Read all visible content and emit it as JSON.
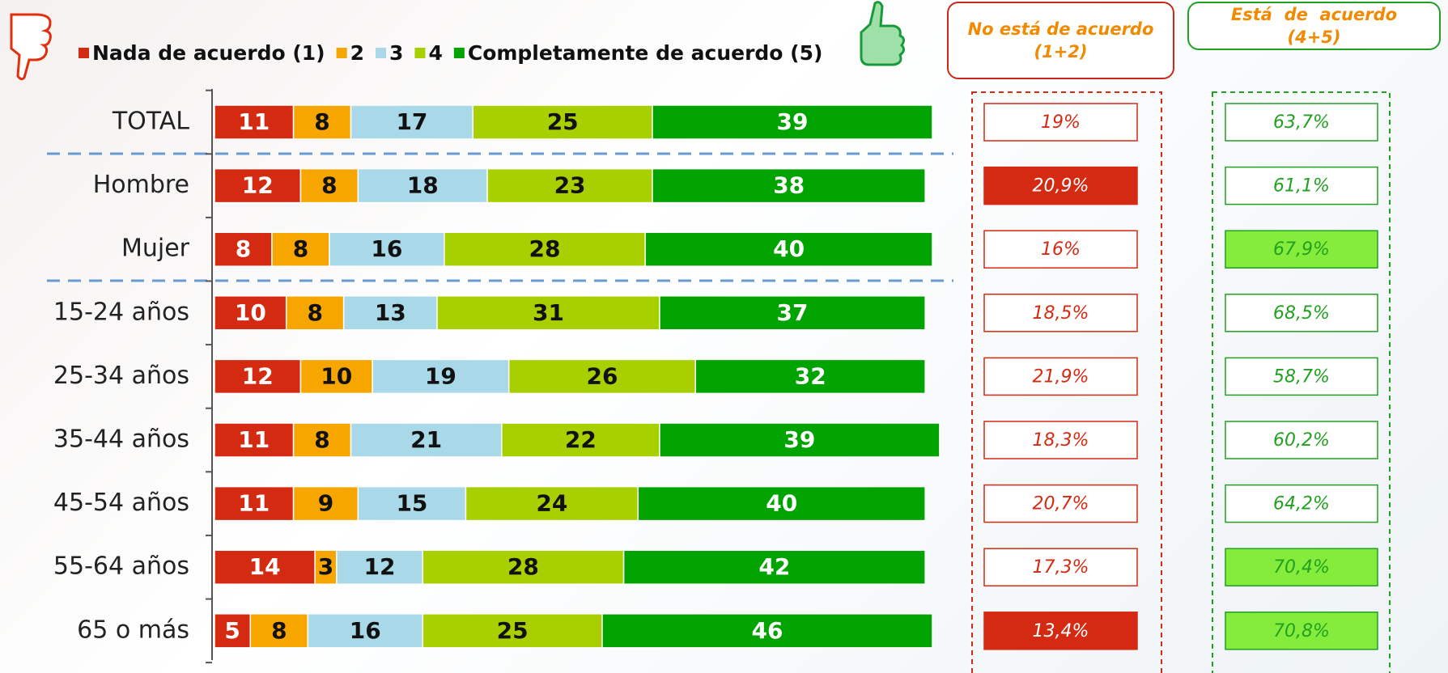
{
  "chart_data": {
    "type": "bar",
    "orientation": "horizontal",
    "stacked": true,
    "categories": [
      "TOTAL",
      "Hombre",
      "Mujer",
      "15-24 años",
      "25-34 años",
      "35-44 años",
      "45-54 años",
      "55-64 años",
      "65 o más"
    ],
    "xlim": [
      0,
      100
    ],
    "series": [
      {
        "name": "Nada de acuerdo (1)",
        "color": "#d42a12",
        "values": [
          11,
          12,
          8,
          10,
          12,
          11,
          11,
          14,
          5
        ]
      },
      {
        "name": "2",
        "color": "#f7a600",
        "values": [
          8,
          8,
          8,
          8,
          10,
          8,
          9,
          3,
          8
        ]
      },
      {
        "name": "3",
        "color": "#a9d9e8",
        "values": [
          17,
          18,
          16,
          13,
          19,
          21,
          15,
          12,
          16
        ]
      },
      {
        "name": "4",
        "color": "#a8d000",
        "values": [
          25,
          23,
          28,
          31,
          26,
          22,
          24,
          28,
          25
        ]
      },
      {
        "name": "Completamente de acuerdo (5)",
        "color": "#00a300",
        "values": [
          39,
          38,
          40,
          37,
          32,
          39,
          40,
          42,
          46
        ]
      }
    ],
    "summary_columns": [
      {
        "title": "No está de acuerdo (1+2)",
        "color": "#d42a12",
        "values": [
          19,
          20.9,
          16,
          18.5,
          21.9,
          18.3,
          20.7,
          17.3,
          13.4
        ],
        "value_labels": [
          "19%",
          "20,9%",
          "16%",
          "18,5%",
          "21,9%",
          "18,3%",
          "20,7%",
          "17,3%",
          "13,4%"
        ],
        "highlight": [
          false,
          true,
          false,
          false,
          false,
          false,
          false,
          false,
          true
        ]
      },
      {
        "title": "Está  de  acuerdo (4+5)",
        "color": "#22a022",
        "values": [
          63.7,
          61.1,
          67.9,
          68.5,
          58.7,
          60.2,
          64.2,
          70.4,
          70.8
        ],
        "value_labels": [
          "63,7%",
          "61,1%",
          "67,9%",
          "68,5%",
          "58,7%",
          "60,2%",
          "64,2%",
          "70,4%",
          "70,8%"
        ],
        "highlight": [
          false,
          false,
          true,
          false,
          false,
          false,
          false,
          true,
          true
        ]
      }
    ]
  }
}
